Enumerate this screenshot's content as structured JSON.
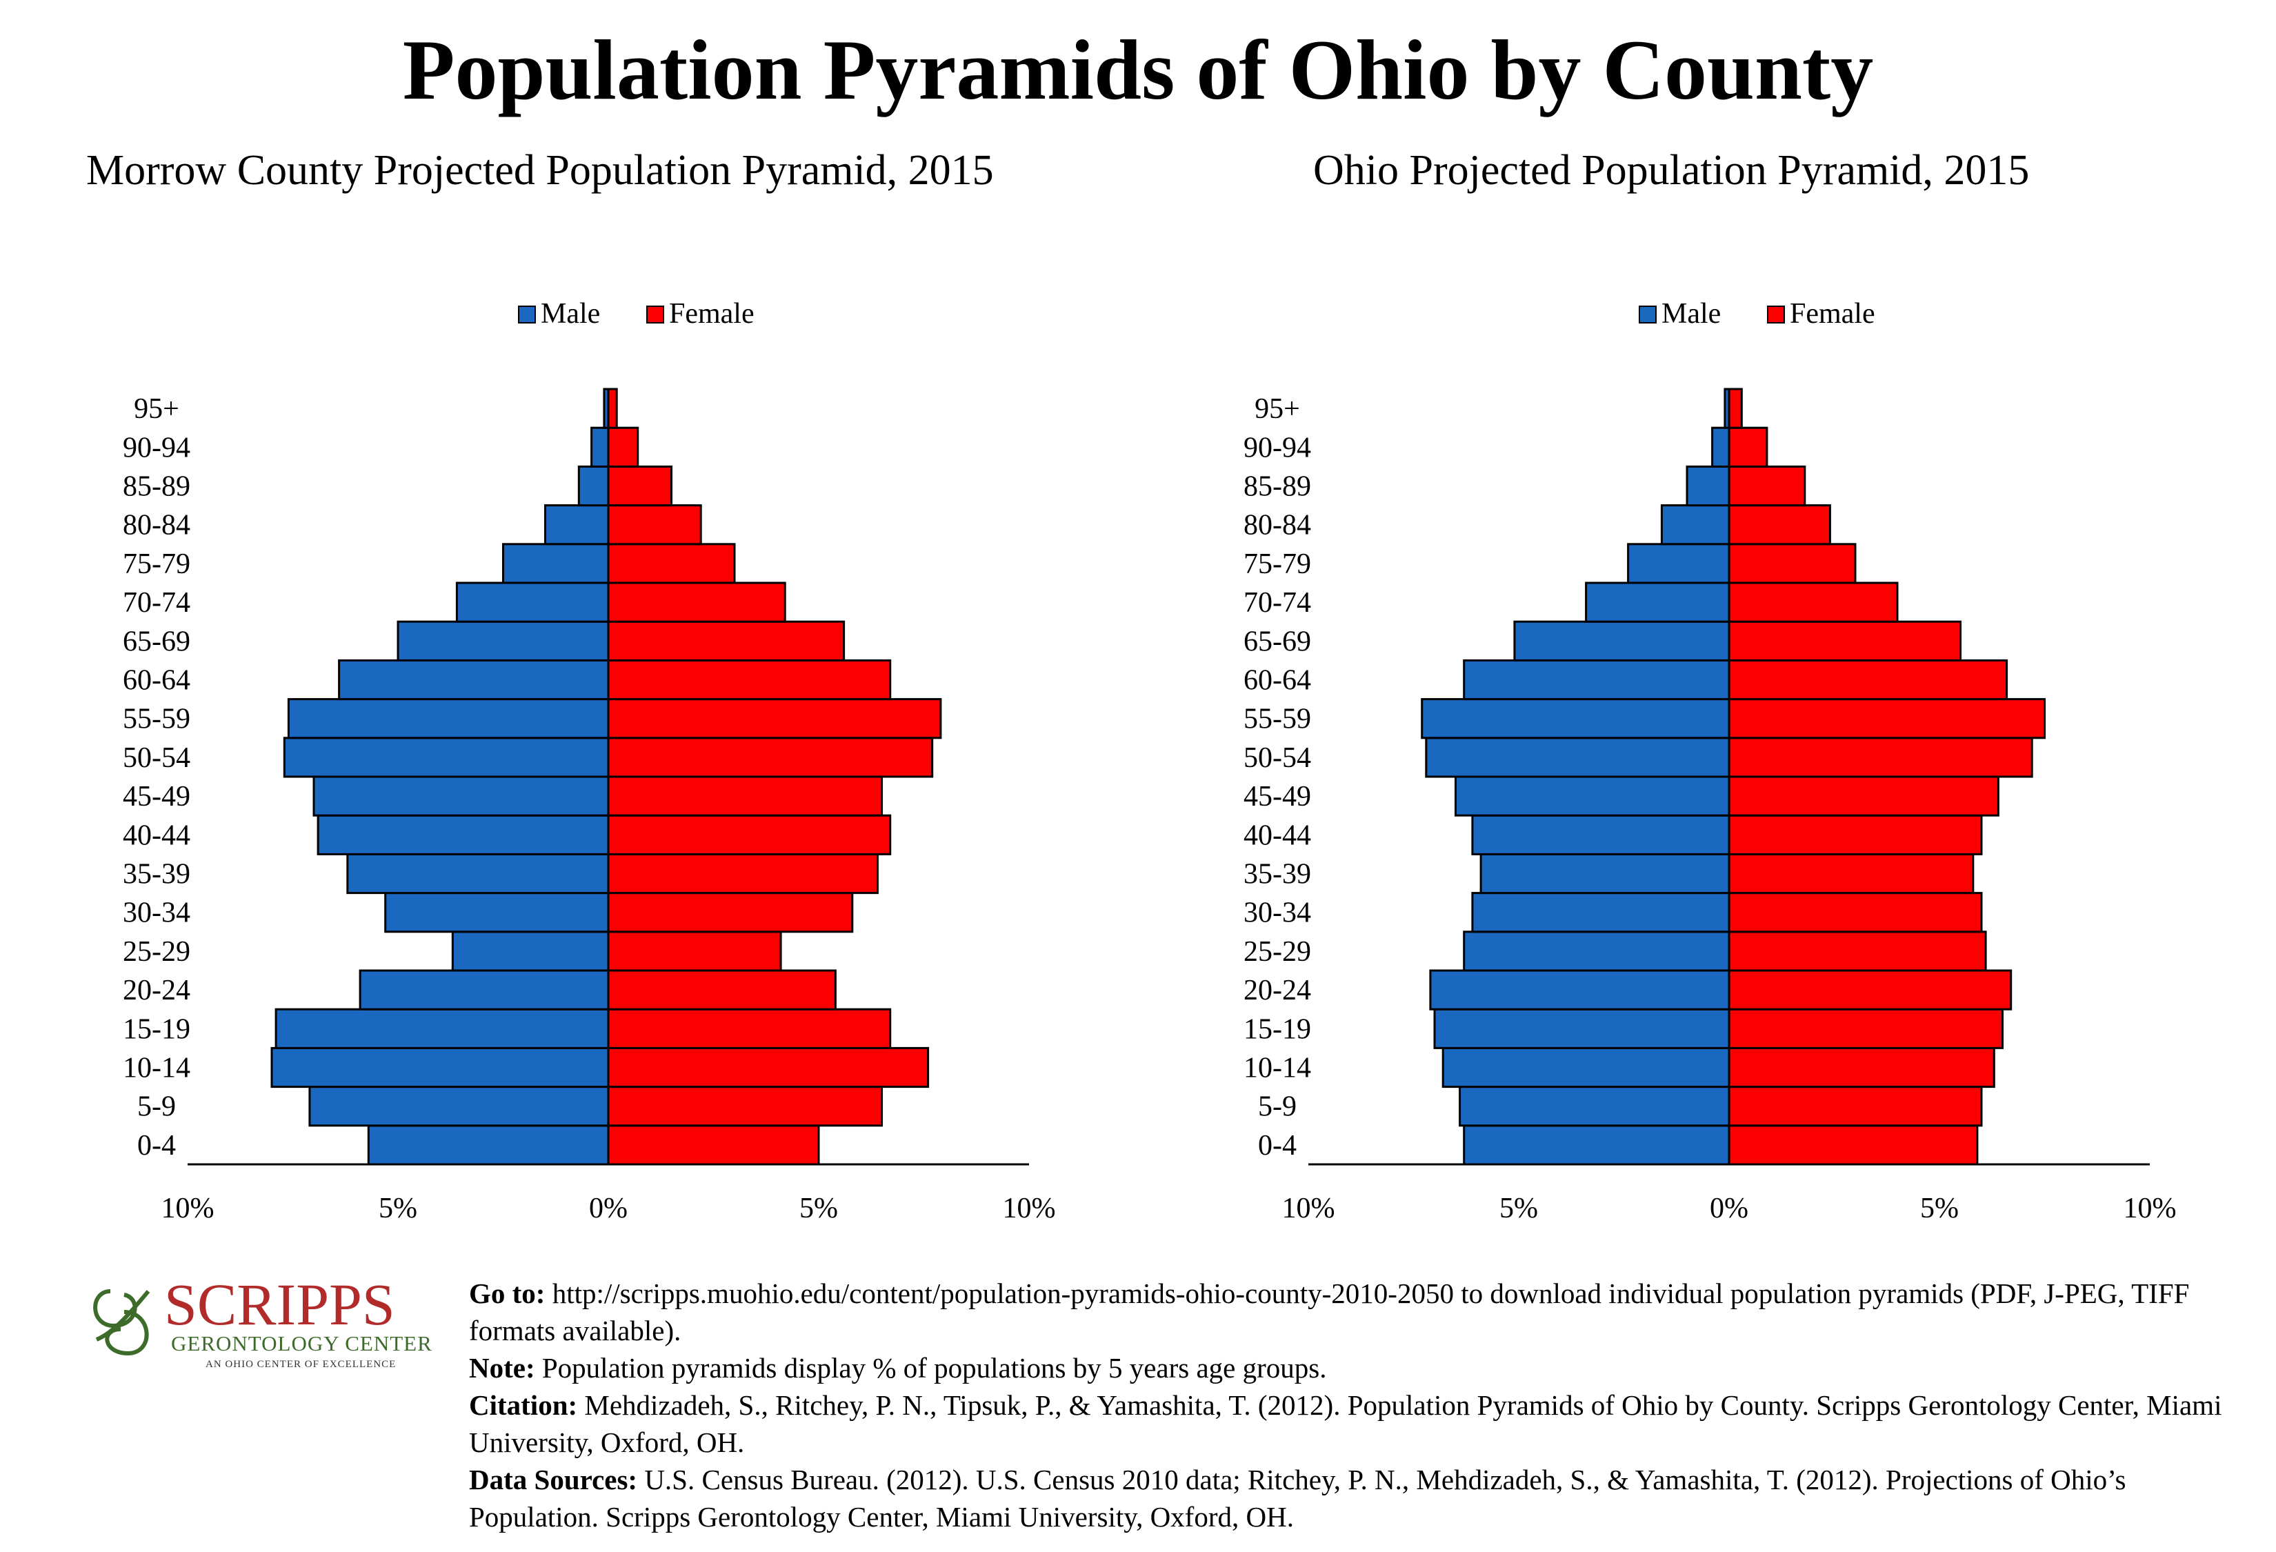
{
  "title": "Population Pyramids of Ohio by County",
  "legend": {
    "male": "Male",
    "female": "Female"
  },
  "colors": {
    "male": "#1a68c0",
    "female": "#fa0000"
  },
  "chart_data": [
    {
      "type": "bar",
      "subtype": "population-pyramid",
      "title": "Morrow County Projected Population Pyramid, 2015",
      "categories": [
        "0-4",
        "5-9",
        "10-14",
        "15-19",
        "20-24",
        "25-29",
        "30-34",
        "35-39",
        "40-44",
        "45-49",
        "50-54",
        "55-59",
        "60-64",
        "65-69",
        "70-74",
        "75-79",
        "80-84",
        "85-89",
        "90-94",
        "95+"
      ],
      "series": [
        {
          "name": "Male",
          "values": [
            5.7,
            7.1,
            8.0,
            7.9,
            5.9,
            3.7,
            5.3,
            6.2,
            6.9,
            7.0,
            7.7,
            7.6,
            6.4,
            5.0,
            3.6,
            2.5,
            1.5,
            0.7,
            0.4,
            0.1
          ]
        },
        {
          "name": "Female",
          "values": [
            5.0,
            6.5,
            7.6,
            6.7,
            5.4,
            4.1,
            5.8,
            6.4,
            6.7,
            6.5,
            7.7,
            7.9,
            6.7,
            5.6,
            4.2,
            3.0,
            2.2,
            1.5,
            0.7,
            0.2
          ]
        }
      ],
      "xlim": [
        -10,
        10
      ],
      "xticks": [
        "10%",
        "5%",
        "0%",
        "5%",
        "10%"
      ],
      "legend_position": "top-center"
    },
    {
      "type": "bar",
      "subtype": "population-pyramid",
      "title": "Ohio Projected Population Pyramid, 2015",
      "categories": [
        "0-4",
        "5-9",
        "10-14",
        "15-19",
        "20-24",
        "25-29",
        "30-34",
        "35-39",
        "40-44",
        "45-49",
        "50-54",
        "55-59",
        "60-64",
        "65-69",
        "70-74",
        "75-79",
        "80-84",
        "85-89",
        "90-94",
        "95+"
      ],
      "series": [
        {
          "name": "Male",
          "values": [
            6.3,
            6.4,
            6.8,
            7.0,
            7.1,
            6.3,
            6.1,
            5.9,
            6.1,
            6.5,
            7.2,
            7.3,
            6.3,
            5.1,
            3.4,
            2.4,
            1.6,
            1.0,
            0.4,
            0.1
          ]
        },
        {
          "name": "Female",
          "values": [
            5.9,
            6.0,
            6.3,
            6.5,
            6.7,
            6.1,
            6.0,
            5.8,
            6.0,
            6.4,
            7.2,
            7.5,
            6.6,
            5.5,
            4.0,
            3.0,
            2.4,
            1.8,
            0.9,
            0.3
          ]
        }
      ],
      "xlim": [
        -10,
        10
      ],
      "xticks": [
        "10%",
        "5%",
        "0%",
        "5%",
        "10%"
      ],
      "legend_position": "top-center"
    }
  ],
  "logo": {
    "name": "SCRIPPS",
    "line2": "GERONTOLOGY CENTER",
    "line3": "AN OHIO CENTER OF EXCELLENCE",
    "color_primary": "#b22b2b",
    "color_secondary": "#3d6b2a"
  },
  "footnotes": {
    "goto_label": "Go to:",
    "goto_text": " http://scripps.muohio.edu/content/population-pyramids-ohio-county-2010-2050 to download individual population pyramids (PDF, J-PEG, TIFF formats available).",
    "note_label": "Note:",
    "note_text": " Population pyramids display % of populations by 5 years age groups.",
    "citation_label": "Citation:",
    "citation_text": " Mehdizadeh, S., Ritchey, P. N., Tipsuk, P., & Yamashita, T. (2012). Population Pyramids of Ohio by County. Scripps Gerontology Center, Miami University, Oxford, OH.",
    "sources_label": "Data Sources:",
    "sources_text": " U.S. Census Bureau. (2012). U.S. Census 2010 data; Ritchey, P. N., Mehdizadeh, S., & Yamashita, T. (2012). Projections of Ohio’s Population. Scripps Gerontology Center, Miami University, Oxford, OH."
  }
}
